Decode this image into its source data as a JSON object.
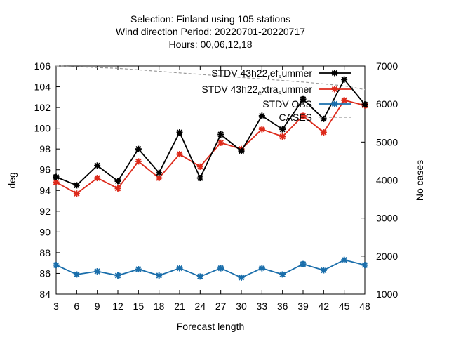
{
  "chart_data": {
    "type": "line",
    "title_lines": [
      "Selection: Finland using    105 stations",
      "Wind direction   Period: 20220701-20220717",
      "Hours:  00,06,12,18"
    ],
    "xlabel": "Forecast length",
    "ylabel": "deg",
    "y2label": "No cases",
    "x": [
      3,
      6,
      9,
      12,
      15,
      18,
      21,
      24,
      27,
      30,
      33,
      36,
      39,
      42,
      45,
      48
    ],
    "xlim": [
      3,
      48
    ],
    "ylim": [
      84,
      106
    ],
    "y2lim": [
      1000,
      7000
    ],
    "y_ticks": [
      84,
      86,
      88,
      90,
      92,
      94,
      96,
      98,
      100,
      102,
      104,
      106
    ],
    "y2_ticks": [
      1000,
      2000,
      3000,
      4000,
      5000,
      6000,
      7000
    ],
    "x_ticks": [
      3,
      6,
      9,
      12,
      15,
      18,
      21,
      24,
      27,
      30,
      33,
      36,
      39,
      42,
      45,
      48
    ],
    "legend_position": "top-right",
    "grid": false,
    "series": [
      {
        "legend_parts": [
          "STDV 43h22",
          "r",
          "ef",
          "s",
          "ummer"
        ],
        "color": "#000000",
        "axis": "y",
        "values": [
          95.3,
          94.5,
          96.4,
          94.9,
          98.0,
          95.7,
          99.6,
          95.2,
          99.4,
          97.8,
          101.2,
          99.9,
          102.8,
          100.9,
          104.7,
          102.3
        ]
      },
      {
        "legend_parts": [
          "STDV 43h22",
          "e",
          "xtra",
          "s",
          "ummer"
        ],
        "color": "#dd2a1b",
        "axis": "y",
        "values": [
          94.8,
          93.7,
          95.2,
          94.2,
          96.8,
          95.2,
          97.5,
          96.3,
          98.6,
          98.0,
          99.9,
          99.2,
          101.2,
          99.6,
          102.7,
          102.2
        ]
      },
      {
        "legend_parts": [
          "STDV OBS"
        ],
        "color": "#1a6eab",
        "axis": "y",
        "values": [
          86.8,
          85.9,
          86.2,
          85.8,
          86.4,
          85.8,
          86.5,
          85.7,
          86.5,
          85.6,
          86.5,
          85.9,
          86.9,
          86.3,
          87.3,
          86.8
        ]
      },
      {
        "legend_parts": [
          "CASES"
        ],
        "color": "#999999",
        "axis": "y2",
        "dashed": true,
        "values": [
          7000,
          6980,
          6960,
          6940,
          6900,
          6860,
          6820,
          6780,
          6740,
          6700,
          6660,
          6620,
          6580,
          6530,
          6480,
          6380
        ]
      }
    ]
  }
}
